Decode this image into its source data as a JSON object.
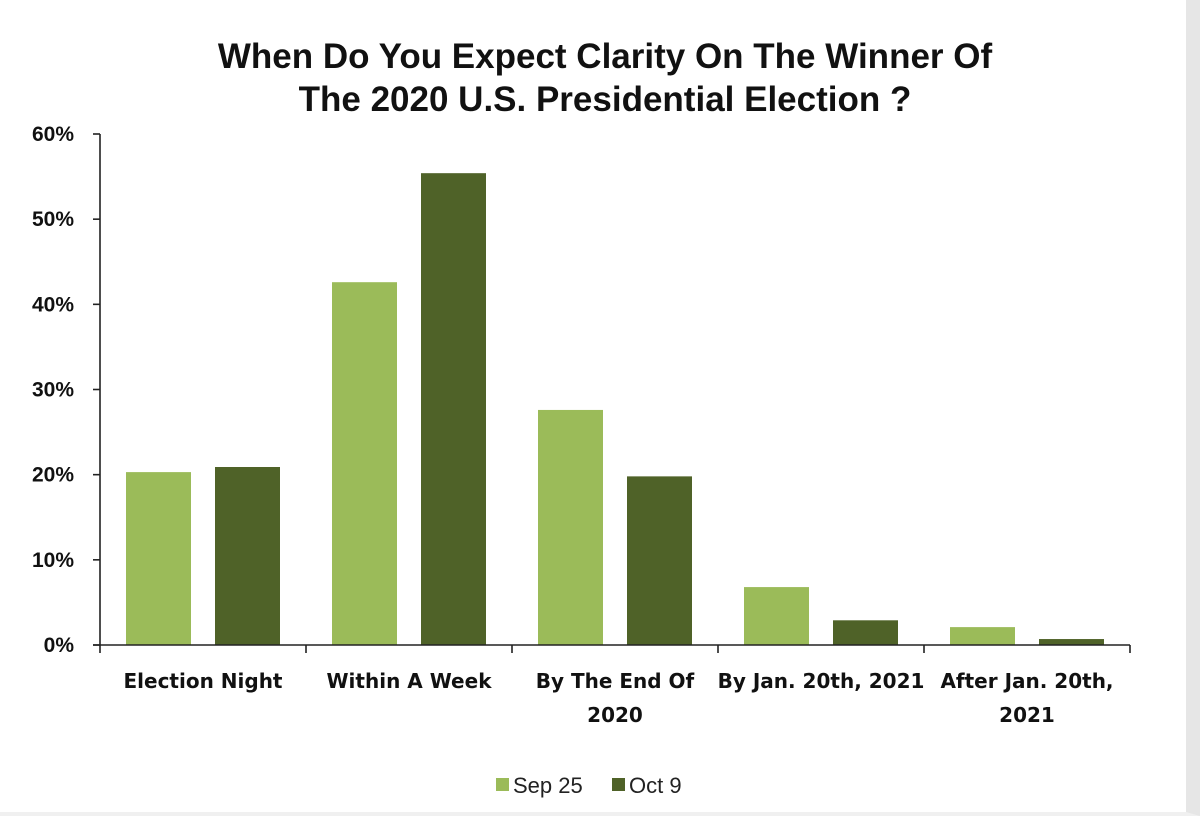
{
  "chart_data": {
    "type": "bar",
    "title": [
      "When Do You Expect Clarity On The Winner Of",
      "The 2020 U.S. Presidential Election ?"
    ],
    "categories": [
      [
        "Election Night"
      ],
      [
        "Within A Week"
      ],
      [
        "By The End Of",
        "2020"
      ],
      [
        "By Jan. 20th, 2021"
      ],
      [
        "After Jan. 20th,",
        "2021"
      ]
    ],
    "series": [
      {
        "name": "Sep 25",
        "color": "#9bbb59",
        "values": [
          20.3,
          42.6,
          27.6,
          6.8,
          2.1
        ]
      },
      {
        "name": "Oct 9",
        "color": "#4f6228",
        "values": [
          20.9,
          55.4,
          19.8,
          2.9,
          0.7
        ]
      }
    ],
    "ylim": [
      0,
      60
    ],
    "yticks": [
      0,
      10,
      20,
      30,
      40,
      50,
      60
    ],
    "ytick_labels": [
      "0%",
      "10%",
      "20%",
      "30%",
      "40%",
      "50%",
      "60%"
    ],
    "xlabel": "",
    "ylabel": "",
    "grid": false,
    "legend_position": "bottom"
  }
}
